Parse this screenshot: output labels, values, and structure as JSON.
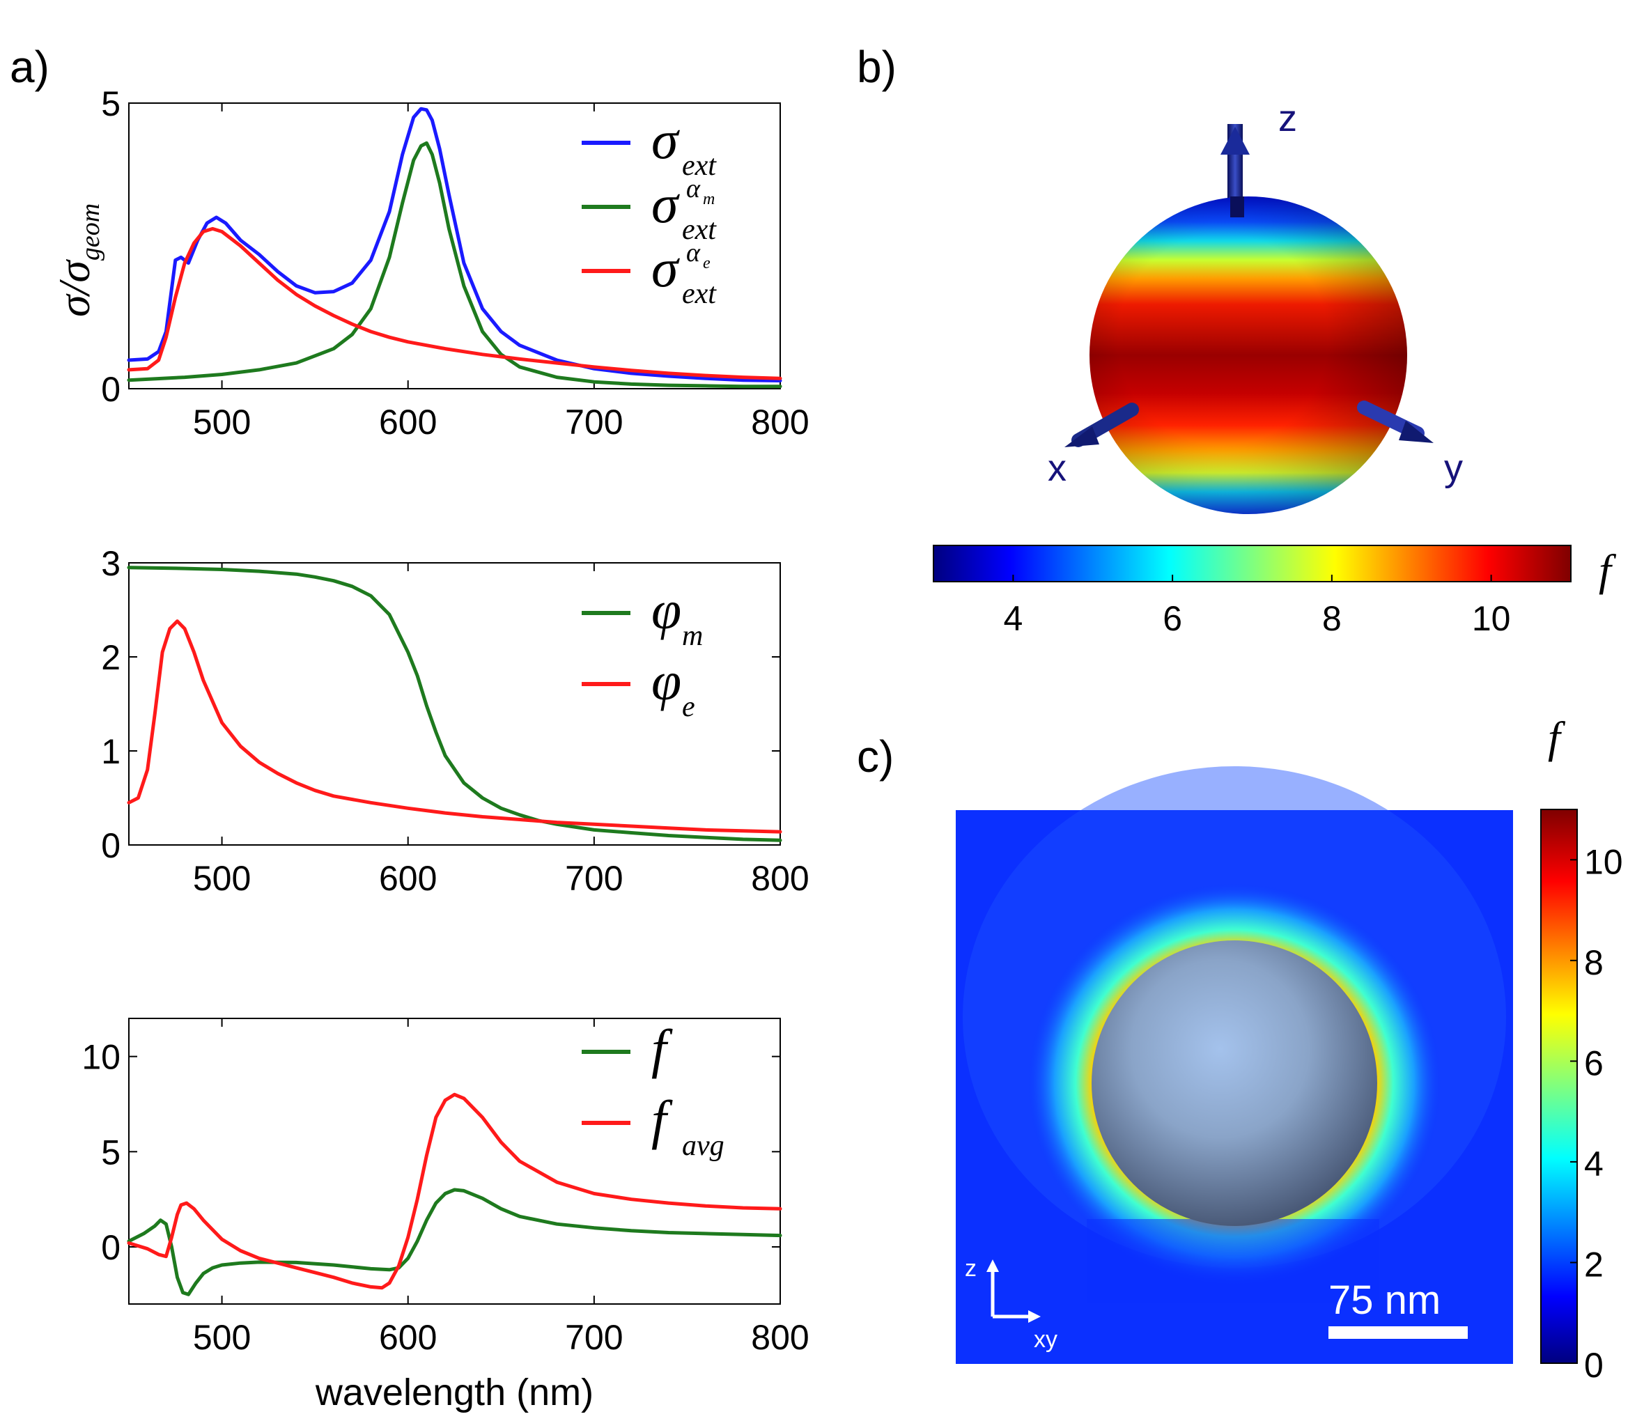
{
  "panel_labels": {
    "a": "a)",
    "b": "b)",
    "c": "c)"
  },
  "chart_data": [
    {
      "id": "top",
      "type": "line",
      "xlim": [
        450,
        800
      ],
      "ylim": [
        0,
        5
      ],
      "xticks": [
        500,
        600,
        700,
        800
      ],
      "yticks": [
        0,
        5
      ],
      "xlabel": "",
      "ylabel_parts": {
        "main": "σ/σ",
        "sub": "geom"
      },
      "legend": [
        {
          "base": "σ",
          "sub": "ext",
          "sup": "",
          "supsub": "",
          "color": "#1a1aff"
        },
        {
          "base": "σ",
          "sub": "ext",
          "sup": "α",
          "supsub": "m",
          "color": "#1e7a1e"
        },
        {
          "base": "σ",
          "sub": "ext",
          "sup": "α",
          "supsub": "e",
          "color": "#ff1a1a"
        }
      ],
      "series": [
        {
          "name": "σ_ext",
          "color": "#1a1aff",
          "x": [
            450,
            460,
            466,
            470,
            475,
            478,
            482,
            487,
            492,
            497,
            502,
            510,
            520,
            530,
            540,
            550,
            560,
            570,
            580,
            590,
            597,
            603,
            607,
            610,
            613,
            617,
            622,
            630,
            640,
            650,
            660,
            680,
            700,
            720,
            740,
            760,
            780,
            800
          ],
          "y": [
            0.5,
            0.52,
            0.65,
            1.0,
            2.25,
            2.3,
            2.2,
            2.6,
            2.9,
            3.0,
            2.9,
            2.6,
            2.35,
            2.05,
            1.8,
            1.68,
            1.7,
            1.85,
            2.25,
            3.1,
            4.1,
            4.75,
            4.9,
            4.88,
            4.7,
            4.2,
            3.4,
            2.2,
            1.4,
            1.0,
            0.76,
            0.5,
            0.35,
            0.27,
            0.22,
            0.18,
            0.15,
            0.14
          ]
        },
        {
          "name": "σ_ext αm",
          "color": "#1e7a1e",
          "x": [
            450,
            480,
            500,
            520,
            540,
            560,
            570,
            580,
            590,
            597,
            603,
            607,
            610,
            613,
            617,
            622,
            630,
            640,
            650,
            660,
            680,
            700,
            720,
            740,
            760,
            780,
            800
          ],
          "y": [
            0.15,
            0.2,
            0.25,
            0.33,
            0.45,
            0.7,
            0.95,
            1.4,
            2.3,
            3.25,
            4.0,
            4.25,
            4.3,
            4.1,
            3.6,
            2.8,
            1.8,
            1.0,
            0.6,
            0.38,
            0.2,
            0.12,
            0.08,
            0.06,
            0.05,
            0.04,
            0.04
          ]
        },
        {
          "name": "σ_ext αe",
          "color": "#ff1a1a",
          "x": [
            450,
            460,
            466,
            470,
            475,
            480,
            485,
            490,
            495,
            500,
            510,
            520,
            530,
            540,
            550,
            560,
            570,
            580,
            590,
            600,
            620,
            640,
            660,
            680,
            700,
            720,
            740,
            760,
            780,
            800
          ],
          "y": [
            0.33,
            0.35,
            0.5,
            0.9,
            1.6,
            2.2,
            2.55,
            2.75,
            2.8,
            2.75,
            2.5,
            2.2,
            1.9,
            1.65,
            1.45,
            1.28,
            1.13,
            1.0,
            0.9,
            0.82,
            0.7,
            0.6,
            0.52,
            0.45,
            0.38,
            0.32,
            0.27,
            0.23,
            0.2,
            0.18
          ]
        }
      ]
    },
    {
      "id": "mid",
      "type": "line",
      "xlim": [
        450,
        800
      ],
      "ylim": [
        0,
        3
      ],
      "xticks": [
        500,
        600,
        700,
        800
      ],
      "yticks": [
        0,
        1,
        2,
        3
      ],
      "xlabel": "",
      "legend": [
        {
          "base": "φ",
          "sub": "m",
          "color": "#1e7a1e"
        },
        {
          "base": "φ",
          "sub": "e",
          "color": "#ff1a1a"
        }
      ],
      "series": [
        {
          "name": "φm",
          "color": "#1e7a1e",
          "x": [
            450,
            480,
            500,
            520,
            540,
            550,
            560,
            570,
            580,
            590,
            600,
            605,
            610,
            615,
            620,
            630,
            640,
            650,
            660,
            670,
            680,
            700,
            720,
            740,
            760,
            780,
            800
          ],
          "y": [
            2.95,
            2.94,
            2.93,
            2.91,
            2.88,
            2.85,
            2.81,
            2.75,
            2.65,
            2.45,
            2.05,
            1.8,
            1.48,
            1.2,
            0.95,
            0.66,
            0.5,
            0.39,
            0.32,
            0.26,
            0.22,
            0.16,
            0.13,
            0.1,
            0.08,
            0.06,
            0.05
          ]
        },
        {
          "name": "φe",
          "color": "#ff1a1a",
          "x": [
            450,
            455,
            460,
            464,
            468,
            472,
            476,
            480,
            485,
            490,
            500,
            510,
            520,
            530,
            540,
            550,
            560,
            580,
            600,
            620,
            640,
            660,
            680,
            700,
            720,
            740,
            760,
            780,
            800
          ],
          "y": [
            0.45,
            0.5,
            0.8,
            1.4,
            2.05,
            2.3,
            2.38,
            2.3,
            2.05,
            1.75,
            1.3,
            1.05,
            0.88,
            0.76,
            0.66,
            0.58,
            0.52,
            0.45,
            0.39,
            0.34,
            0.3,
            0.27,
            0.24,
            0.22,
            0.2,
            0.18,
            0.16,
            0.15,
            0.14
          ]
        }
      ]
    },
    {
      "id": "bottom",
      "type": "line",
      "xlim": [
        450,
        800
      ],
      "ylim": [
        -3,
        12
      ],
      "xticks": [
        500,
        600,
        700,
        800
      ],
      "yticks": [
        0,
        5,
        10
      ],
      "xlabel": "wavelength (nm)",
      "legend": [
        {
          "base": "f",
          "sub": "",
          "color": "#1e7a1e"
        },
        {
          "base": "f",
          "sub": "avg",
          "color": "#ff1a1a"
        }
      ],
      "series": [
        {
          "name": "f",
          "color": "#1e7a1e",
          "x": [
            450,
            458,
            464,
            467,
            470,
            473,
            476,
            479,
            482,
            486,
            490,
            495,
            500,
            510,
            520,
            540,
            560,
            580,
            590,
            595,
            600,
            605,
            610,
            615,
            620,
            625,
            630,
            640,
            650,
            660,
            680,
            700,
            720,
            740,
            760,
            780,
            800
          ],
          "y": [
            0.3,
            0.7,
            1.1,
            1.4,
            1.2,
            0.0,
            -1.6,
            -2.4,
            -2.5,
            -1.9,
            -1.4,
            -1.1,
            -0.95,
            -0.85,
            -0.8,
            -0.82,
            -0.95,
            -1.15,
            -1.2,
            -1.1,
            -0.6,
            0.3,
            1.4,
            2.3,
            2.8,
            3.0,
            2.95,
            2.55,
            2.0,
            1.6,
            1.2,
            1.0,
            0.85,
            0.75,
            0.7,
            0.65,
            0.6
          ]
        },
        {
          "name": "f_avg",
          "color": "#ff1a1a",
          "x": [
            450,
            460,
            466,
            470,
            473,
            476,
            478,
            481,
            485,
            490,
            500,
            510,
            520,
            540,
            560,
            570,
            580,
            586,
            590,
            595,
            600,
            605,
            610,
            615,
            620,
            625,
            630,
            640,
            650,
            660,
            680,
            700,
            720,
            740,
            760,
            780,
            800
          ],
          "y": [
            0.2,
            -0.1,
            -0.4,
            -0.5,
            0.5,
            1.7,
            2.2,
            2.3,
            2.0,
            1.4,
            0.4,
            -0.2,
            -0.6,
            -1.1,
            -1.6,
            -1.9,
            -2.1,
            -2.15,
            -1.9,
            -1.0,
            0.5,
            2.5,
            4.8,
            6.8,
            7.7,
            8.0,
            7.8,
            6.8,
            5.5,
            4.5,
            3.4,
            2.8,
            2.5,
            2.3,
            2.15,
            2.05,
            2.0
          ]
        }
      ]
    }
  ],
  "sphere_panel": {
    "axes": {
      "z": "z",
      "x": "x",
      "y": "y"
    },
    "colorbar": {
      "ticks": [
        4,
        6,
        8,
        10
      ],
      "range": [
        3,
        11
      ],
      "label": "f"
    }
  },
  "map_panel": {
    "colorbar": {
      "ticks": [
        0,
        2,
        4,
        6,
        8,
        10
      ],
      "range": [
        0,
        11
      ],
      "label": "f"
    },
    "scale_bar": "75 nm",
    "axis_z": "z",
    "axis_xy": "xy"
  }
}
